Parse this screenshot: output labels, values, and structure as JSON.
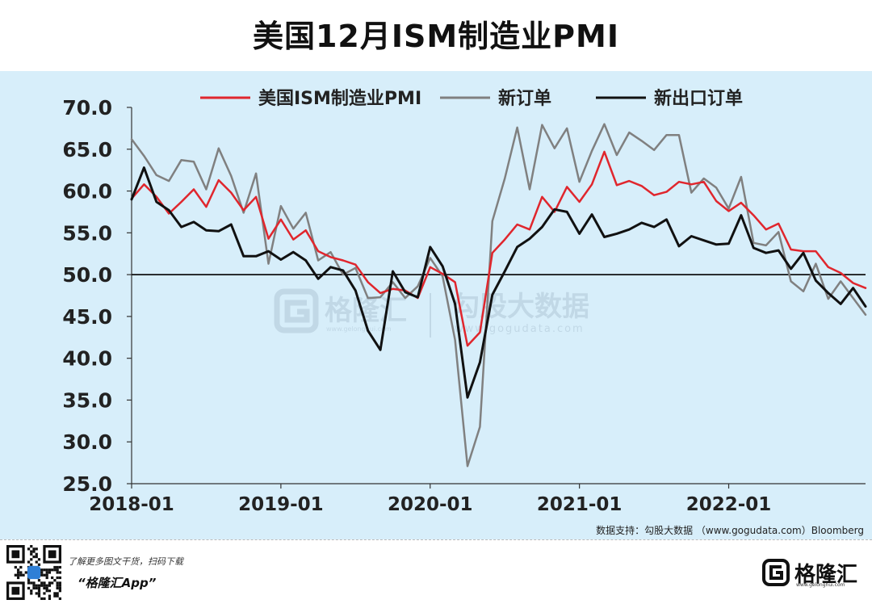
{
  "title": "美国12月ISM制造业PMI",
  "source": "数据支持：勾股大数据 （www.gogudata.com）Bloomberg",
  "watermark": {
    "brand": "格隆汇",
    "brand_site": "www.gelonghui.com",
    "data_brand": "勾股大数据",
    "data_site": "www.gogudata.com"
  },
  "footer": {
    "line1": "了解更多图文干货，扫码下载",
    "line2": "“格隆汇App”",
    "brand_name": "格隆汇",
    "brand_site": "www.gelonghui.com"
  },
  "icons": {
    "qr": "qr-code-icon",
    "logo": "gelonghui-logo-icon"
  },
  "colors": {
    "pmi": "#e0262d",
    "new_orders": "#808080",
    "export_orders": "#111111",
    "background": "#d7eefa"
  },
  "chart_data": {
    "type": "line",
    "title": "",
    "xlabel": "",
    "ylabel": "",
    "ylim": [
      25.0,
      70.0
    ],
    "yticks": [
      "70.0",
      "65.0",
      "60.0",
      "55.0",
      "50.0",
      "45.0",
      "40.0",
      "35.0",
      "30.0",
      "25.0"
    ],
    "xticks": [
      "2018-01",
      "2019-01",
      "2020-01",
      "2021-01",
      "2022-01"
    ],
    "legend_position": "top",
    "reference_line": 50.0,
    "x": [
      "2018-01",
      "2018-02",
      "2018-03",
      "2018-04",
      "2018-05",
      "2018-06",
      "2018-07",
      "2018-08",
      "2018-09",
      "2018-10",
      "2018-11",
      "2018-12",
      "2019-01",
      "2019-02",
      "2019-03",
      "2019-04",
      "2019-05",
      "2019-06",
      "2019-07",
      "2019-08",
      "2019-09",
      "2019-10",
      "2019-11",
      "2019-12",
      "2020-01",
      "2020-02",
      "2020-03",
      "2020-04",
      "2020-05",
      "2020-06",
      "2020-07",
      "2020-08",
      "2020-09",
      "2020-10",
      "2020-11",
      "2020-12",
      "2021-01",
      "2021-02",
      "2021-03",
      "2021-04",
      "2021-05",
      "2021-06",
      "2021-07",
      "2021-08",
      "2021-09",
      "2021-10",
      "2021-11",
      "2021-12",
      "2022-01",
      "2022-02",
      "2022-03",
      "2022-04",
      "2022-05",
      "2022-06",
      "2022-07",
      "2022-08",
      "2022-09",
      "2022-10",
      "2022-11",
      "2022-12"
    ],
    "series": [
      {
        "name": "美国ISM制造业PMI",
        "color": "#e0262d",
        "width": 2.5,
        "values": [
          59.1,
          60.8,
          59.3,
          57.3,
          58.7,
          60.2,
          58.1,
          61.3,
          59.8,
          57.7,
          59.3,
          54.3,
          56.6,
          54.2,
          55.3,
          52.8,
          52.1,
          51.7,
          51.2,
          49.1,
          47.8,
          48.3,
          48.1,
          47.2,
          50.9,
          50.1,
          49.1,
          41.5,
          43.1,
          52.6,
          54.2,
          56.0,
          55.4,
          59.3,
          57.5,
          60.5,
          58.7,
          60.8,
          64.7,
          60.7,
          61.2,
          60.6,
          59.5,
          59.9,
          61.1,
          60.8,
          61.1,
          58.8,
          57.6,
          58.6,
          57.1,
          55.4,
          56.1,
          53.0,
          52.8,
          52.8,
          50.9,
          50.2,
          49.0,
          48.4
        ]
      },
      {
        "name": "新订单",
        "color": "#808080",
        "width": 2.5,
        "values": [
          66.2,
          64.2,
          61.9,
          61.2,
          63.7,
          63.5,
          60.2,
          65.1,
          61.8,
          57.4,
          62.1,
          51.3,
          58.2,
          55.5,
          57.4,
          51.7,
          52.7,
          50.0,
          50.8,
          47.2,
          47.3,
          49.1,
          47.2,
          48.6,
          52.0,
          49.8,
          42.2,
          27.1,
          31.8,
          56.4,
          61.5,
          67.6,
          60.2,
          67.9,
          65.1,
          67.5,
          61.1,
          64.8,
          68.0,
          64.3,
          67.0,
          66.0,
          64.9,
          66.7,
          66.7,
          59.8,
          61.5,
          60.4,
          57.9,
          61.7,
          53.8,
          53.5,
          55.1,
          49.2,
          48.0,
          51.3,
          47.1,
          49.2,
          47.2,
          45.2
        ]
      },
      {
        "name": "新出口订单",
        "color": "#111111",
        "width": 3,
        "values": [
          59.0,
          62.8,
          58.7,
          57.7,
          55.7,
          56.3,
          55.3,
          55.2,
          56.0,
          52.2,
          52.2,
          52.8,
          51.8,
          52.7,
          51.7,
          49.5,
          50.9,
          50.5,
          48.1,
          43.3,
          41.0,
          50.4,
          47.9,
          47.3,
          53.3,
          51.0,
          46.5,
          35.3,
          39.5,
          47.6,
          50.4,
          53.3,
          54.3,
          55.7,
          57.8,
          57.5,
          54.9,
          57.2,
          54.5,
          54.9,
          55.4,
          56.2,
          55.7,
          56.6,
          53.4,
          54.6,
          54.1,
          53.6,
          53.7,
          57.1,
          53.2,
          52.6,
          52.9,
          50.7,
          52.6,
          49.3,
          47.8,
          46.5,
          48.4,
          46.2
        ]
      }
    ]
  }
}
